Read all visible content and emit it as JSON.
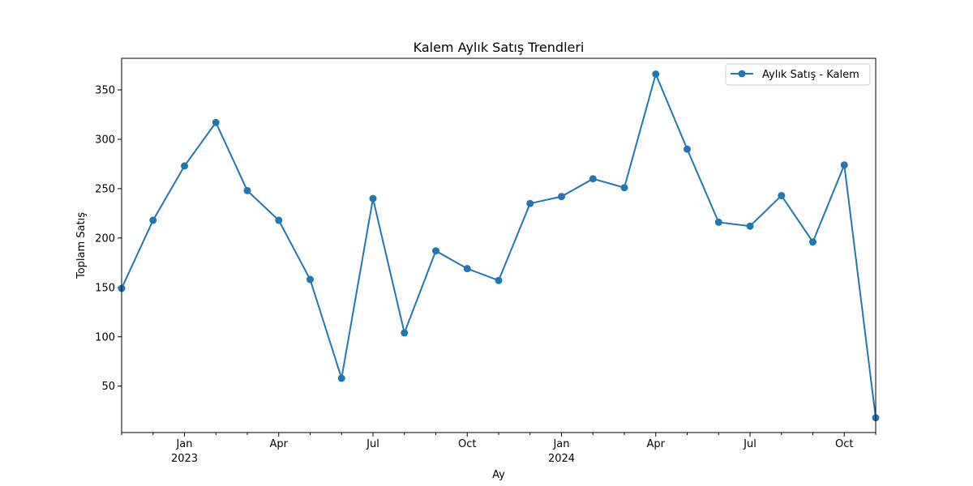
{
  "chart_data": {
    "type": "line",
    "title": "Kalem Aylık Satış Trendleri",
    "xlabel": "Ay",
    "ylabel": "Toplam Satış",
    "x": [
      "2022-11",
      "2022-12",
      "2023-01",
      "2023-02",
      "2023-03",
      "2023-04",
      "2023-05",
      "2023-06",
      "2023-07",
      "2023-08",
      "2023-09",
      "2023-10",
      "2023-11",
      "2023-12",
      "2024-01",
      "2024-02",
      "2024-03",
      "2024-04",
      "2024-05",
      "2024-06",
      "2024-07",
      "2024-08",
      "2024-09",
      "2024-10",
      "2024-11"
    ],
    "series": [
      {
        "name": "Aylık Satış - Kalem",
        "color": "#1f77b4",
        "marker": "circle",
        "values": [
          149,
          218,
          273,
          317,
          248,
          218,
          158,
          58,
          240,
          104,
          187,
          169,
          157,
          235,
          242,
          260,
          251,
          366,
          290,
          216,
          212,
          243,
          196,
          274,
          18
        ]
      }
    ],
    "ylim": [
      3,
      382
    ],
    "y_ticks": [
      50,
      100,
      150,
      200,
      250,
      300,
      350
    ],
    "x_major_ticks": [
      {
        "x": "2023-01",
        "month": "Jan",
        "year": "2023"
      },
      {
        "x": "2023-04",
        "month": "Apr",
        "year": ""
      },
      {
        "x": "2023-07",
        "month": "Jul",
        "year": ""
      },
      {
        "x": "2023-10",
        "month": "Oct",
        "year": ""
      },
      {
        "x": "2024-01",
        "month": "Jan",
        "year": "2024"
      },
      {
        "x": "2024-04",
        "month": "Apr",
        "year": ""
      },
      {
        "x": "2024-07",
        "month": "Jul",
        "year": ""
      },
      {
        "x": "2024-10",
        "month": "Oct",
        "year": ""
      }
    ],
    "grid": false,
    "legend": "top-right"
  }
}
